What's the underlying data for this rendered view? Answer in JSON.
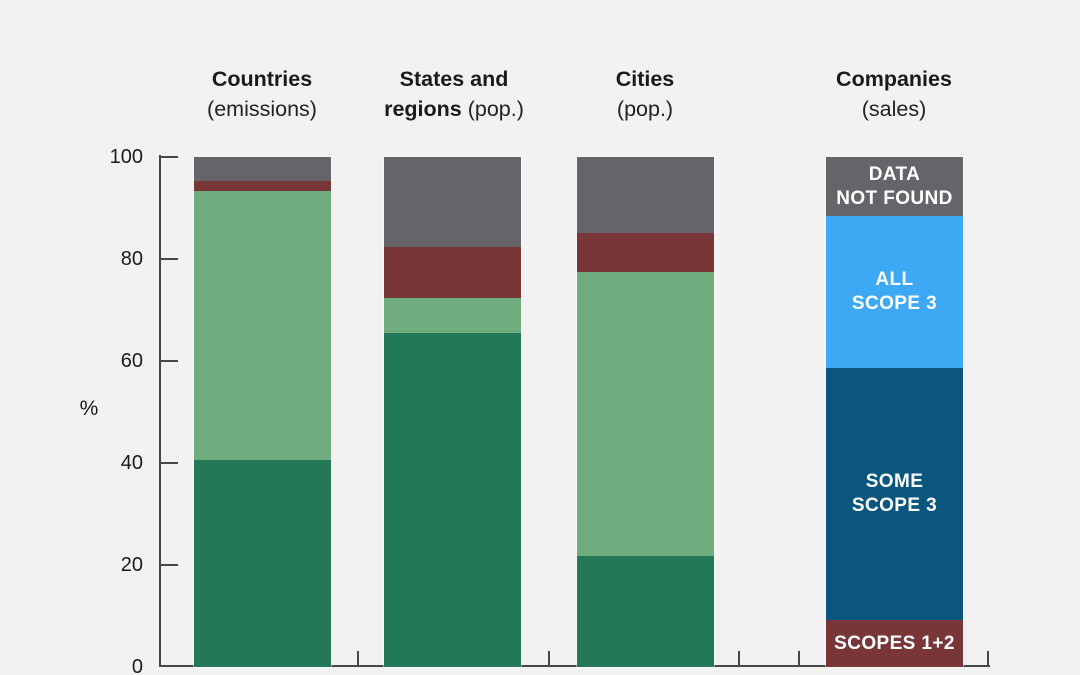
{
  "colors": {
    "background": "#f2f2f2",
    "axis": "#474747",
    "text": "#1a1a1a",
    "label_white": "#ffffff",
    "gray": "#676469",
    "dark_red": "#783639",
    "light_green": "#6fad7e",
    "dark_green": "#227857",
    "light_blue": "#3da9f5",
    "dark_blue": "#0b567f"
  },
  "y_axis": {
    "label": "%"
  },
  "chart_data": {
    "type": "bar",
    "stacked": true,
    "title": "",
    "xlabel": "",
    "ylabel": "%",
    "ylim": [
      0,
      100
    ],
    "yticks": [
      0,
      20,
      40,
      60,
      80,
      100
    ],
    "grid": false,
    "legend_position": "none",
    "categories": [
      "Countries (emissions)",
      "States and regions (pop.)",
      "Cities (pop.)",
      "Companies (sales)"
    ],
    "bars": [
      {
        "id": "countries",
        "header_lines": [
          {
            "bold": "Countries",
            "regular": ""
          },
          {
            "bold": "",
            "regular": "(emissions)"
          }
        ],
        "segments": [
          {
            "name": "gray",
            "color_key": "gray",
            "value": 4.7,
            "label_lines": []
          },
          {
            "name": "dark-red",
            "color_key": "dark_red",
            "value": 2.0,
            "label_lines": []
          },
          {
            "name": "light-green",
            "color_key": "light_green",
            "value": 52.8,
            "label_lines": []
          },
          {
            "name": "dark-green",
            "color_key": "dark_green",
            "value": 40.5,
            "label_lines": []
          }
        ]
      },
      {
        "id": "states-and-regions",
        "header_lines": [
          {
            "bold": "States and",
            "regular": ""
          },
          {
            "bold": "regions",
            "regular": " (pop.)"
          }
        ],
        "segments": [
          {
            "name": "gray",
            "color_key": "gray",
            "value": 17.6,
            "label_lines": []
          },
          {
            "name": "dark-red",
            "color_key": "dark_red",
            "value": 10.0,
            "label_lines": []
          },
          {
            "name": "light-green",
            "color_key": "light_green",
            "value": 6.9,
            "label_lines": []
          },
          {
            "name": "dark-green",
            "color_key": "dark_green",
            "value": 65.5,
            "label_lines": []
          }
        ]
      },
      {
        "id": "cities",
        "header_lines": [
          {
            "bold": "Cities",
            "regular": ""
          },
          {
            "bold": "",
            "regular": "(pop.)"
          }
        ],
        "segments": [
          {
            "name": "gray",
            "color_key": "gray",
            "value": 14.9,
            "label_lines": []
          },
          {
            "name": "dark-red",
            "color_key": "dark_red",
            "value": 7.6,
            "label_lines": []
          },
          {
            "name": "light-green",
            "color_key": "light_green",
            "value": 55.7,
            "label_lines": []
          },
          {
            "name": "dark-green",
            "color_key": "dark_green",
            "value": 21.8,
            "label_lines": []
          }
        ]
      },
      {
        "id": "companies",
        "header_lines": [
          {
            "bold": "Companies",
            "regular": ""
          },
          {
            "bold": "",
            "regular": "(sales)"
          }
        ],
        "segments": [
          {
            "name": "data-not-found",
            "color_key": "gray",
            "value": 11.6,
            "label_lines": [
              "DATA",
              "NOT FOUND"
            ]
          },
          {
            "name": "all-scope-3",
            "color_key": "light_blue",
            "value": 29.8,
            "label_lines": [
              "ALL",
              "SCOPE 3"
            ]
          },
          {
            "name": "some-scope-3",
            "color_key": "dark_blue",
            "value": 49.4,
            "label_lines": [
              "SOME",
              "SCOPE 3"
            ]
          },
          {
            "name": "scopes-1-2",
            "color_key": "dark_red",
            "value": 9.2,
            "label_lines": [
              "SCOPES 1+2"
            ]
          }
        ]
      }
    ]
  }
}
